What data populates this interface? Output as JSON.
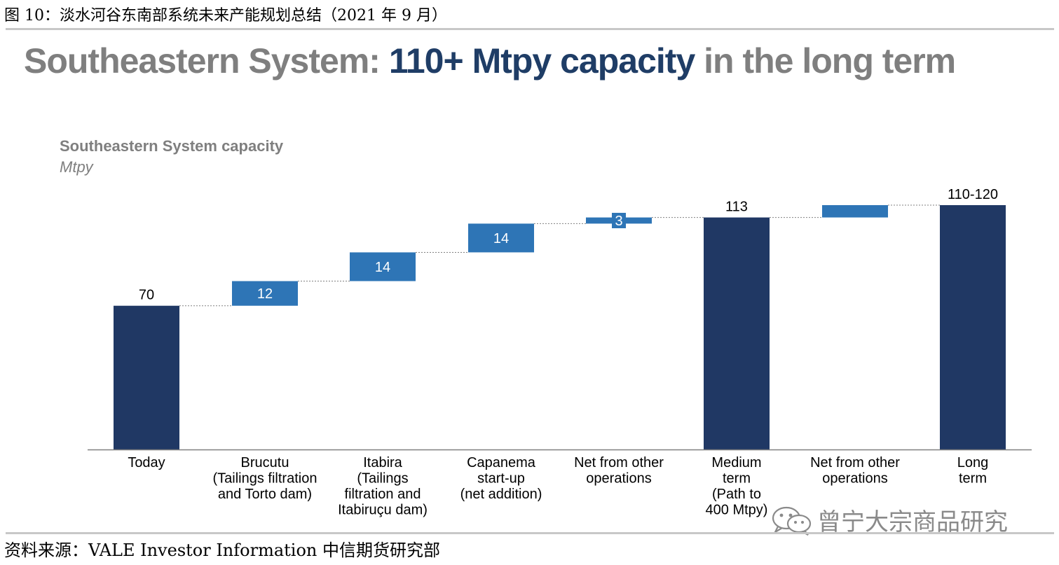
{
  "figure_caption": "图 10：淡水河谷东南部系统未来产能规划总结（2021 年 9 月）",
  "headline": {
    "part1": "Southeastern System: ",
    "part2": "110+ Mtpy capacity",
    "part3": " in the long term"
  },
  "source": "资料来源：VALE Investor Information  中信期货研究部",
  "watermark": {
    "text": "曾宁大宗商品研究",
    "icon": "wechat-icon"
  },
  "colors": {
    "total": "#203864",
    "increment": "#2e75b6",
    "headline_grey": "#7f7f7f",
    "headline_blue": "#1f3d66"
  },
  "chart_data": {
    "type": "bar",
    "subtype": "waterfall",
    "title": "Southeastern System capacity",
    "ylabel": "Mtpy",
    "ylim": [
      0,
      120
    ],
    "grid": false,
    "categories": [
      [
        "Today"
      ],
      [
        "Brucutu",
        "(Tailings filtration",
        "and Torto dam)"
      ],
      [
        "Itabira",
        "(Tailings",
        "filtration and",
        "Itabiruçu dam)"
      ],
      [
        "Capanema",
        "start-up",
        "(net addition)"
      ],
      [
        "Net from other",
        "operations"
      ],
      [
        "Medium",
        "term",
        "(Path to",
        "400 Mtpy)"
      ],
      [
        "Net from other",
        "operations"
      ],
      [
        "Long",
        "term"
      ]
    ],
    "steps": [
      {
        "kind": "total",
        "start": 0,
        "end": 70,
        "label": "70"
      },
      {
        "kind": "increment",
        "start": 70,
        "end": 82,
        "label": "12"
      },
      {
        "kind": "increment",
        "start": 82,
        "end": 96,
        "label": "14"
      },
      {
        "kind": "increment",
        "start": 96,
        "end": 110,
        "label": "14"
      },
      {
        "kind": "increment",
        "start": 110,
        "end": 113,
        "label": "3"
      },
      {
        "kind": "total",
        "start": 0,
        "end": 113,
        "label": "113"
      },
      {
        "kind": "increment",
        "start": 113,
        "end": 119,
        "label": ""
      },
      {
        "kind": "total",
        "start": 0,
        "end": 119,
        "label": "110-120"
      }
    ]
  }
}
